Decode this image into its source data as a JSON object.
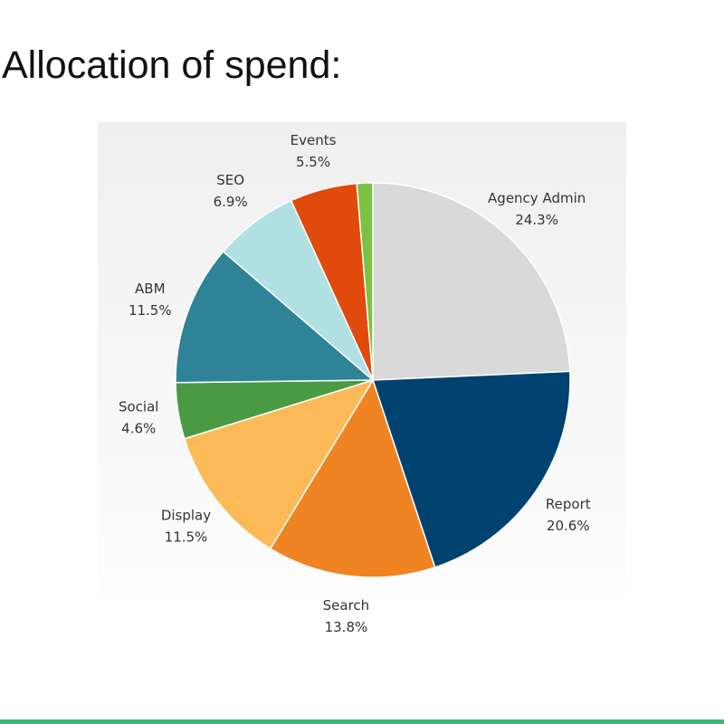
{
  "chart_data": {
    "type": "pie",
    "title": "Allocation of spend:",
    "categories": [
      "Agency Admin",
      "Report",
      "Search",
      "Display",
      "Social",
      "ABM",
      "SEO",
      "Events",
      null
    ],
    "values": [
      24.3,
      20.6,
      13.8,
      11.5,
      4.6,
      11.5,
      6.9,
      5.5,
      1.3
    ],
    "value_labels": [
      "24.3%",
      "20.6%",
      "13.8%",
      "11.5%",
      "4.6%",
      "11.5%",
      "6.9%",
      "5.5%",
      null
    ],
    "colors": [
      "#d9d9d9",
      "#00426f",
      "#f08423",
      "#fbba57",
      "#4a9a44",
      "#2f8397",
      "#b1e0e3",
      "#e04a0c",
      "#7bc143"
    ]
  }
}
